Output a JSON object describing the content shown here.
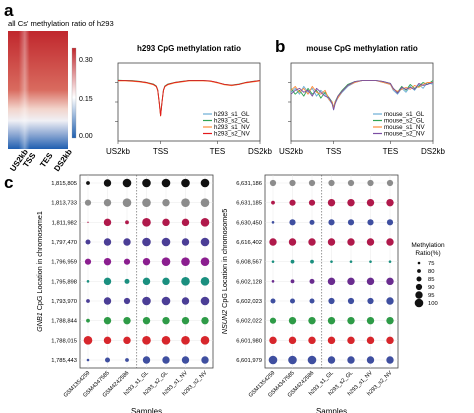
{
  "panels": {
    "a": "a",
    "b": "b",
    "c": "c"
  },
  "heatmap": {
    "title": "all Cs' methylation ratio of h293",
    "colorbar_ticks": [
      "0.30",
      "0.15",
      "0.00"
    ],
    "colorbar_range": [
      0.0,
      0.36
    ],
    "colorbar_colors": [
      "#1f5fb0",
      "#ffffff",
      "#c0272d"
    ],
    "x_labels": [
      "US2kb",
      "TSS",
      "TES",
      "DS2kb"
    ]
  },
  "chart_data": [
    {
      "id": "h293_line",
      "type": "line",
      "title": "h293 CpG methylation ratio",
      "x_ticks": [
        "US2kb",
        "TSS",
        "TES",
        "DS2kb"
      ],
      "x_tick_positions": [
        0,
        30,
        70,
        100
      ],
      "ylim": [
        0.5,
        0.9
      ],
      "y_ticks": [
        0.6,
        0.7,
        0.8
      ],
      "series": [
        {
          "name": "h293_s1_GL",
          "color": "#6baed6",
          "x": [
            0,
            5,
            10,
            15,
            20,
            25,
            27,
            28,
            29,
            30,
            31,
            32,
            33,
            35,
            40,
            45,
            50,
            55,
            60,
            65,
            70,
            75,
            80,
            85,
            90,
            95,
            100
          ],
          "y": [
            0.81,
            0.81,
            0.808,
            0.805,
            0.8,
            0.79,
            0.78,
            0.76,
            0.7,
            0.63,
            0.7,
            0.76,
            0.78,
            0.79,
            0.8,
            0.805,
            0.81,
            0.81,
            0.81,
            0.808,
            0.8,
            0.79,
            0.785,
            0.79,
            0.8,
            0.805,
            0.81
          ]
        },
        {
          "name": "h293_s2_GL",
          "color": "#31a354",
          "x": [
            0,
            5,
            10,
            15,
            20,
            25,
            27,
            28,
            29,
            30,
            31,
            32,
            33,
            35,
            40,
            45,
            50,
            55,
            60,
            65,
            70,
            75,
            80,
            85,
            90,
            95,
            100
          ],
          "y": [
            0.812,
            0.81,
            0.81,
            0.806,
            0.8,
            0.792,
            0.782,
            0.762,
            0.702,
            0.632,
            0.702,
            0.762,
            0.782,
            0.792,
            0.8,
            0.806,
            0.81,
            0.81,
            0.81,
            0.806,
            0.8,
            0.79,
            0.787,
            0.792,
            0.8,
            0.806,
            0.81
          ]
        },
        {
          "name": "h293_s1_NV",
          "color": "#fd8d3c",
          "x": [
            0,
            5,
            10,
            15,
            20,
            25,
            27,
            28,
            29,
            30,
            31,
            32,
            33,
            35,
            40,
            45,
            50,
            55,
            60,
            65,
            70,
            75,
            80,
            85,
            90,
            95,
            100
          ],
          "y": [
            0.808,
            0.808,
            0.806,
            0.803,
            0.798,
            0.788,
            0.778,
            0.758,
            0.698,
            0.628,
            0.698,
            0.758,
            0.778,
            0.788,
            0.798,
            0.803,
            0.808,
            0.808,
            0.808,
            0.806,
            0.798,
            0.788,
            0.784,
            0.79,
            0.798,
            0.803,
            0.808
          ]
        },
        {
          "name": "h293_s2_NV",
          "color": "#e31a1c",
          "x": [
            0,
            5,
            10,
            15,
            20,
            25,
            27,
            28,
            29,
            30,
            31,
            32,
            33,
            35,
            40,
            45,
            50,
            55,
            60,
            65,
            70,
            75,
            80,
            85,
            90,
            95,
            100
          ],
          "y": [
            0.81,
            0.81,
            0.808,
            0.805,
            0.8,
            0.79,
            0.78,
            0.76,
            0.7,
            0.63,
            0.7,
            0.76,
            0.78,
            0.79,
            0.8,
            0.805,
            0.81,
            0.81,
            0.81,
            0.808,
            0.8,
            0.79,
            0.786,
            0.79,
            0.8,
            0.805,
            0.81
          ]
        }
      ]
    },
    {
      "id": "mouse_line",
      "type": "line",
      "title": "mouse CpG methylation ratio",
      "x_ticks": [
        "US2kb",
        "TSS",
        "TES",
        "DS2kb"
      ],
      "x_tick_positions": [
        0,
        30,
        70,
        100
      ],
      "ylim": [
        0.5,
        0.9
      ],
      "y_ticks": [
        0.6,
        0.7,
        0.8
      ],
      "series": [
        {
          "name": "mouse_s1_GL",
          "color": "#6baed6",
          "x": [
            0,
            3,
            6,
            9,
            12,
            15,
            18,
            21,
            24,
            27,
            29,
            30,
            31,
            33,
            36,
            40,
            45,
            50,
            55,
            60,
            65,
            70,
            72,
            75,
            78,
            81,
            84,
            87,
            90,
            93,
            96,
            100
          ],
          "y": [
            0.75,
            0.77,
            0.74,
            0.78,
            0.75,
            0.77,
            0.73,
            0.76,
            0.74,
            0.71,
            0.69,
            0.66,
            0.69,
            0.72,
            0.75,
            0.78,
            0.8,
            0.81,
            0.81,
            0.81,
            0.8,
            0.79,
            0.76,
            0.74,
            0.77,
            0.75,
            0.78,
            0.76,
            0.79,
            0.77,
            0.8,
            0.79
          ]
        },
        {
          "name": "mouse_s2_GL",
          "color": "#31a354",
          "x": [
            0,
            3,
            6,
            9,
            12,
            15,
            18,
            21,
            24,
            27,
            29,
            30,
            31,
            33,
            36,
            40,
            45,
            50,
            55,
            60,
            65,
            70,
            72,
            75,
            78,
            81,
            84,
            87,
            90,
            93,
            96,
            100
          ],
          "y": [
            0.77,
            0.74,
            0.76,
            0.73,
            0.77,
            0.74,
            0.76,
            0.72,
            0.75,
            0.72,
            0.7,
            0.67,
            0.7,
            0.73,
            0.76,
            0.79,
            0.805,
            0.81,
            0.81,
            0.81,
            0.805,
            0.795,
            0.77,
            0.75,
            0.78,
            0.76,
            0.79,
            0.77,
            0.78,
            0.8,
            0.79,
            0.81
          ]
        },
        {
          "name": "mouse_s1_NV",
          "color": "#fd8d3c",
          "x": [
            0,
            3,
            6,
            9,
            12,
            15,
            18,
            21,
            24,
            27,
            29,
            30,
            31,
            33,
            36,
            40,
            45,
            50,
            55,
            60,
            65,
            70,
            72,
            75,
            78,
            81,
            84,
            87,
            90,
            93,
            96,
            100
          ],
          "y": [
            0.76,
            0.78,
            0.75,
            0.77,
            0.74,
            0.78,
            0.75,
            0.74,
            0.76,
            0.71,
            0.7,
            0.665,
            0.7,
            0.72,
            0.755,
            0.785,
            0.8,
            0.81,
            0.81,
            0.81,
            0.8,
            0.79,
            0.765,
            0.755,
            0.765,
            0.775,
            0.765,
            0.785,
            0.775,
            0.79,
            0.8,
            0.8
          ]
        },
        {
          "name": "mouse_s2_NV",
          "color": "#7b4ea3",
          "x": [
            0,
            3,
            6,
            9,
            12,
            15,
            18,
            21,
            24,
            27,
            29,
            30,
            31,
            33,
            36,
            40,
            45,
            50,
            55,
            60,
            65,
            70,
            72,
            75,
            78,
            81,
            84,
            87,
            90,
            93,
            96,
            100
          ],
          "y": [
            0.74,
            0.76,
            0.77,
            0.75,
            0.76,
            0.73,
            0.77,
            0.75,
            0.73,
            0.72,
            0.69,
            0.66,
            0.69,
            0.73,
            0.755,
            0.785,
            0.805,
            0.81,
            0.81,
            0.81,
            0.805,
            0.795,
            0.77,
            0.745,
            0.775,
            0.765,
            0.775,
            0.765,
            0.795,
            0.785,
            0.79,
            0.8
          ]
        }
      ]
    },
    {
      "id": "gnb1_bubble",
      "type": "scatter",
      "ylabel_gene": "GNB1",
      "ylabel_rest": " CpG Location in chromosome1",
      "xlabel": "Samples",
      "samples": [
        "GSM1354259",
        "GSM4347585",
        "GSM4242586",
        "h293_s1_GL",
        "h293_s2_GL",
        "h293_s1_NV",
        "h293_s2_NV"
      ],
      "locations": [
        "1,815,805",
        "1,813,733",
        "1,811,982",
        "1,797,470",
        "1,796,959",
        "1,795,898",
        "1,793,970",
        "1,788,844",
        "1,788,015",
        "1,785,443"
      ],
      "row_colors": [
        "#111111",
        "#8c8c8c",
        "#b0194b",
        "#4b3e96",
        "#8b1e8f",
        "#1a8f7f",
        "#4b3e96",
        "#2e9b47",
        "#d7262c",
        "#3f4fa0"
      ],
      "values": [
        [
          80,
          95,
          100,
          100,
          100,
          100,
          100
        ],
        [
          90,
          95,
          100,
          100,
          95,
          100,
          100
        ],
        [
          70,
          95,
          80,
          100,
          95,
          95,
          100
        ],
        [
          85,
          95,
          95,
          100,
          100,
          95,
          100
        ],
        [
          90,
          95,
          90,
          95,
          100,
          100,
          100
        ],
        [
          75,
          95,
          85,
          95,
          95,
          100,
          100
        ],
        [
          80,
          95,
          90,
          100,
          100,
          95,
          100
        ],
        [
          80,
          95,
          95,
          95,
          95,
          95,
          95
        ],
        [
          100,
          95,
          95,
          100,
          100,
          100,
          100
        ],
        [
          75,
          85,
          80,
          95,
          95,
          95,
          95
        ]
      ]
    },
    {
      "id": "nsun2_bubble",
      "type": "scatter",
      "ylabel_gene": "NSUN2",
      "ylabel_rest": " CpG Location in chromosome5",
      "xlabel": "Samples",
      "samples": [
        "GSM1354259",
        "GSM4347585",
        "GSM4242586",
        "h293_s1_GL",
        "h293_s2_GL",
        "h293_s1_NV",
        "h293_s2_NV"
      ],
      "locations": [
        "6,631,186",
        "6,631,185",
        "6,630,450",
        "6,616,402",
        "6,608,567",
        "6,602,128",
        "6,602,023",
        "6,602,022",
        "6,601,980",
        "6,601,979"
      ],
      "row_colors": [
        "#8c8c8c",
        "#b0194b",
        "#3f4fa0",
        "#b0194b",
        "#1a8f7f",
        "#6a2c8f",
        "#3f4fa0",
        "#2e9b47",
        "#d7262c",
        "#3f4fa0"
      ],
      "values": [
        [
          90,
          90,
          90,
          90,
          90,
          90,
          90
        ],
        [
          80,
          90,
          90,
          95,
          95,
          95,
          95
        ],
        [
          75,
          90,
          85,
          90,
          90,
          90,
          90
        ],
        [
          95,
          95,
          95,
          95,
          95,
          95,
          95
        ],
        [
          75,
          80,
          80,
          75,
          75,
          75,
          75
        ],
        [
          75,
          80,
          85,
          95,
          95,
          95,
          95
        ],
        [
          85,
          85,
          85,
          90,
          90,
          90,
          95
        ],
        [
          90,
          95,
          95,
          95,
          95,
          95,
          95
        ],
        [
          95,
          95,
          95,
          95,
          95,
          95,
          95
        ],
        [
          100,
          100,
          100,
          95,
          95,
          95,
          95
        ]
      ]
    }
  ],
  "size_legend": {
    "title_line1": "Methylation",
    "title_line2": "Ratio(%)",
    "values": [
      75,
      80,
      85,
      90,
      95,
      100
    ]
  }
}
